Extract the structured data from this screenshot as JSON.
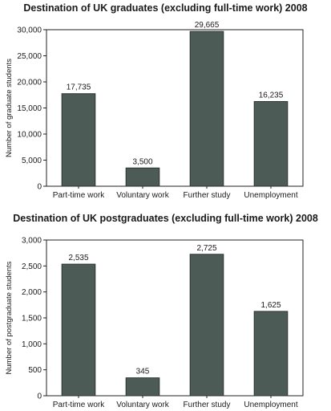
{
  "chart_data": [
    {
      "type": "bar",
      "title": "Destination of UK graduates (excluding full-time work) 2008",
      "xlabel": "",
      "ylabel": "Number of graduate students",
      "categories": [
        "Part-time work",
        "Voluntary work",
        "Further study",
        "Unemployment"
      ],
      "values": [
        17735,
        3500,
        29665,
        16235
      ],
      "value_labels": [
        "17,735",
        "3,500",
        "29,665",
        "16,235"
      ],
      "ylim": [
        0,
        30000
      ],
      "yticks": [
        0,
        5000,
        10000,
        15000,
        20000,
        25000,
        30000
      ],
      "ytick_labels": [
        "0",
        "5,000",
        "10,000",
        "15,000",
        "20,000",
        "25,000",
        "30,000"
      ],
      "grid": false,
      "bar_color": "#4d5b56"
    },
    {
      "type": "bar",
      "title": "Destination of UK postgraduates (excluding full-time work) 2008",
      "xlabel": "",
      "ylabel": "Number of postgraduate students",
      "categories": [
        "Part-time work",
        "Voluntary work",
        "Further study",
        "Unemployment"
      ],
      "values": [
        2535,
        345,
        2725,
        1625
      ],
      "value_labels": [
        "2,535",
        "345",
        "2,725",
        "1,625"
      ],
      "ylim": [
        0,
        3000
      ],
      "yticks": [
        0,
        500,
        1000,
        1500,
        2000,
        2500,
        3000
      ],
      "ytick_labels": [
        "0",
        "500",
        "1,000",
        "1,500",
        "2,000",
        "2,500",
        "3,000"
      ],
      "grid": false,
      "bar_color": "#4d5b56"
    }
  ]
}
